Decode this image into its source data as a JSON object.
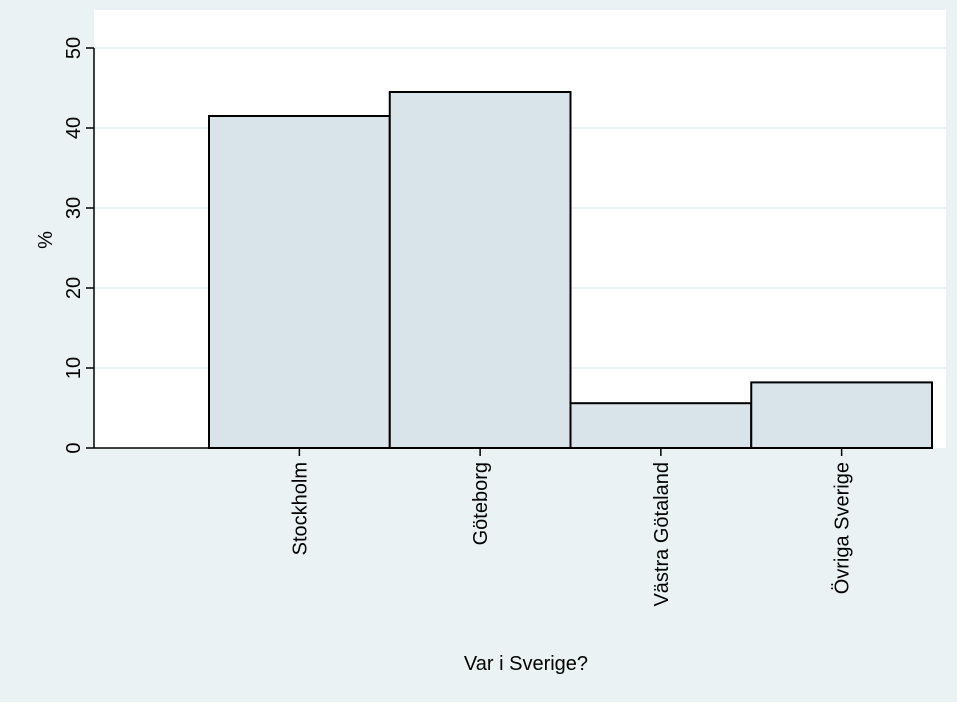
{
  "chart_data": {
    "type": "bar",
    "categories": [
      "Stockholm",
      "Göteborg",
      "Västra Götaland",
      "Övriga Sverige"
    ],
    "values": [
      41.5,
      44.5,
      5.6,
      8.2
    ],
    "title": "",
    "xlabel": "Var i Sverige?",
    "ylabel": "%",
    "ylim": [
      0,
      50
    ],
    "yticks": [
      0,
      10,
      20,
      30,
      40,
      50
    ],
    "grid": true,
    "colors": {
      "background": "#eaf2f3",
      "plot_area": "#ffffff",
      "bar_fill": "#d9e4ea",
      "bar_stroke": "#000000",
      "grid": "#eaf2f3",
      "axis": "#000000"
    }
  }
}
